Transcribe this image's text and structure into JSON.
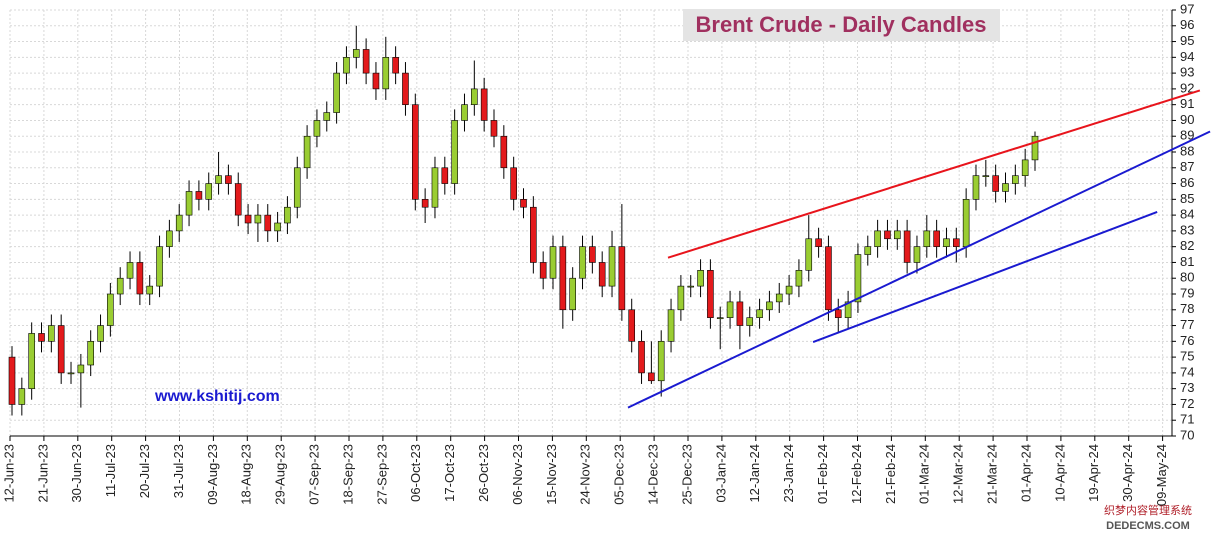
{
  "chart_data": {
    "type": "candlestick",
    "title": "Brent Crude - Daily Candles",
    "watermark": "www.kshitij.com",
    "corner_watermark": [
      "织梦内容管理系统",
      "DEDECMS.COM"
    ],
    "categories": [
      "12-Jun-23",
      "21-Jun-23",
      "30-Jun-23",
      "11-Jul-23",
      "20-Jul-23",
      "31-Jul-23",
      "09-Aug-23",
      "18-Aug-23",
      "29-Aug-23",
      "07-Sep-23",
      "18-Sep-23",
      "27-Sep-23",
      "06-Oct-23",
      "17-Oct-23",
      "26-Oct-23",
      "06-Nov-23",
      "15-Nov-23",
      "24-Nov-23",
      "05-Dec-23",
      "14-Dec-23",
      "25-Dec-23",
      "03-Jan-24",
      "12-Jan-24",
      "23-Jan-24",
      "01-Feb-24",
      "12-Feb-24",
      "21-Feb-24",
      "01-Mar-24",
      "12-Mar-24",
      "21-Mar-24",
      "01-Apr-24",
      "10-Apr-24",
      "19-Apr-24",
      "30-Apr-24",
      "09-May-24"
    ],
    "ylim": [
      70,
      97
    ],
    "yticks": [
      70,
      71,
      72,
      73,
      74,
      75,
      76,
      77,
      78,
      79,
      80,
      81,
      82,
      83,
      84,
      85,
      86,
      87,
      88,
      89,
      90,
      91,
      92,
      93,
      94,
      95,
      96,
      97
    ],
    "grid": true,
    "up_color": "#9acd32",
    "down_color": "#e31a1c",
    "open": [
      75,
      72,
      73,
      76.5,
      76,
      77,
      74,
      74,
      74.5,
      76,
      77,
      79,
      80,
      81,
      79,
      79.5,
      82,
      83,
      84,
      85.5,
      85,
      86,
      86.5,
      86,
      84,
      83.5,
      84,
      83,
      83.5,
      84.5,
      87,
      89,
      90,
      90.5,
      93,
      94,
      94.5,
      93,
      92,
      94,
      93,
      91,
      85,
      84.5,
      87,
      86,
      90,
      91,
      92,
      90,
      89,
      87,
      85,
      84.5,
      81,
      80,
      82,
      78,
      80,
      82,
      81,
      79.5,
      82,
      78,
      76,
      74,
      73.5,
      76,
      78,
      79.5,
      79.5,
      80.5,
      77.5,
      77.5,
      78.5,
      77,
      77.5,
      78,
      78.5,
      79,
      79.5,
      80.5,
      82.5,
      82,
      78,
      77.5,
      78.5,
      81.5,
      82,
      83,
      82.5,
      83,
      81,
      82,
      83,
      82,
      82.5,
      82,
      85,
      86.5,
      86.5,
      85.5,
      86,
      86.5,
      87.5
    ],
    "high": [
      75.7,
      73.7,
      77.2,
      77.2,
      77.7,
      77.7,
      74.7,
      75.2,
      76.7,
      77.7,
      79.7,
      80.7,
      81.7,
      81.7,
      80.2,
      82.7,
      83.7,
      84.7,
      86.2,
      86.2,
      86.7,
      88,
      87.2,
      86.7,
      84.7,
      84.7,
      84.7,
      84.2,
      85.2,
      87.7,
      89.7,
      90.7,
      91.2,
      93.7,
      94.7,
      96,
      95.2,
      93.7,
      95.3,
      94.7,
      93.7,
      91.7,
      85.7,
      87.7,
      87.7,
      90.7,
      91.7,
      93.8,
      92.7,
      90.7,
      89.7,
      87.7,
      85.7,
      85.2,
      81.7,
      82.7,
      82.7,
      80.7,
      82.7,
      82.7,
      81.7,
      83,
      84.7,
      78.7,
      76.7,
      76,
      76.7,
      78.7,
      80.2,
      80.2,
      81.2,
      81.2,
      78.2,
      79.2,
      79.2,
      78.2,
      78.7,
      79.2,
      79.7,
      80.2,
      81.2,
      84,
      83.2,
      82.7,
      78.7,
      79.2,
      82.2,
      82.7,
      83.7,
      83.7,
      83.7,
      83.7,
      82.7,
      84,
      83.7,
      83.2,
      83.2,
      85.7,
      87.2,
      87.5,
      87.2,
      86.7,
      87.2,
      88.2,
      89.3
    ],
    "low": [
      71.3,
      71.3,
      72.3,
      75.3,
      75.3,
      73.3,
      73.3,
      71.8,
      73.8,
      75.3,
      76.3,
      78.3,
      79.3,
      78.3,
      78.3,
      78.8,
      81.3,
      82.3,
      83.3,
      84.3,
      84.3,
      85.3,
      85.3,
      83.3,
      82.8,
      82.3,
      82.3,
      82.3,
      82.8,
      83.8,
      86.3,
      88.3,
      89.3,
      89.8,
      92.3,
      93.3,
      92.3,
      91.3,
      91.3,
      92.3,
      90.3,
      84.3,
      83.5,
      83.8,
      85.3,
      85.3,
      89.3,
      90.3,
      89.3,
      88.3,
      86.3,
      84.3,
      83.8,
      80.3,
      79.3,
      79.3,
      76.8,
      77.3,
      79.3,
      80.3,
      78.8,
      78.8,
      77.3,
      75.3,
      73.3,
      73.3,
      72.5,
      75.3,
      77.3,
      78.8,
      78.8,
      76.8,
      75.5,
      76.8,
      75.5,
      76.3,
      76.8,
      77.3,
      77.8,
      78.3,
      78.8,
      79.8,
      81.3,
      77.3,
      76.5,
      76.8,
      77.8,
      80.8,
      81.3,
      81.8,
      81.8,
      80.3,
      80.3,
      81.3,
      81.3,
      81.3,
      81,
      81.3,
      84.3,
      85.8,
      84.8,
      84.8,
      85.3,
      85.8,
      86.8
    ],
    "close": [
      72,
      73,
      76.5,
      76,
      77,
      74,
      74,
      74.5,
      76,
      77,
      79,
      80,
      81,
      79,
      79.5,
      82,
      83,
      84,
      85.5,
      85,
      86,
      86.5,
      86,
      84,
      83.5,
      84,
      83,
      83.5,
      84.5,
      87,
      89,
      90,
      90.5,
      93,
      94,
      94.5,
      93,
      92,
      94,
      93,
      91,
      85,
      84.5,
      87,
      86,
      90,
      91,
      92,
      90,
      89,
      87,
      85,
      84.5,
      81,
      80,
      82,
      78,
      80,
      82,
      81,
      79.5,
      82,
      78,
      76,
      74,
      73.5,
      76,
      78,
      79.5,
      79.5,
      80.5,
      77.5,
      77.5,
      78.5,
      77,
      77.5,
      78,
      78.5,
      79,
      79.5,
      80.5,
      82.5,
      82,
      78,
      77.5,
      78.5,
      81.5,
      82,
      83,
      82.5,
      83,
      81,
      82,
      83,
      82,
      82.5,
      82,
      85,
      86.5,
      86.5,
      85.5,
      86,
      86.5,
      87.5,
      89
    ],
    "trendlines": [
      {
        "color": "#e8141c",
        "x": [
          19.41,
          35.1
        ],
        "y": [
          81.3,
          91.9
        ]
      },
      {
        "color": "#1a1ad0",
        "x": [
          18.23,
          35.4
        ],
        "y": [
          71.8,
          89.3
        ]
      },
      {
        "color": "#1a1ad0",
        "x": [
          23.69,
          33.84
        ],
        "y": [
          75.95,
          84.2
        ]
      }
    ]
  }
}
